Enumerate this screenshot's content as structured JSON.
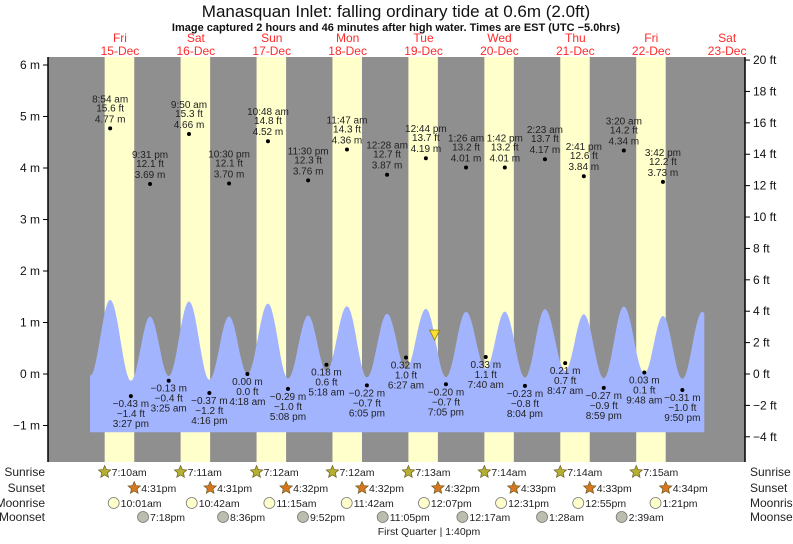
{
  "title": "Manasquan Inlet: falling  ordinary tide at 0.6m (2.0ft)",
  "subtitle": "Image captured 2 hours and 46 minutes after high water. Times are EST (UTC −5.0hrs)",
  "colors": {
    "night": "#8f8f8f",
    "day": "#ffffcc",
    "tide": "#a3b4ff",
    "day_label": "#ff2a2a",
    "sunrise": "#b5b030",
    "sunset": "#d8761f",
    "moonrise": "#ffffcc",
    "moonset": "#bdbdad",
    "marker": "#ffe030"
  },
  "days": [
    {
      "dow": "Fri",
      "date": "15-Dec"
    },
    {
      "dow": "Sat",
      "date": "16-Dec"
    },
    {
      "dow": "Sun",
      "date": "17-Dec"
    },
    {
      "dow": "Mon",
      "date": "18-Dec"
    },
    {
      "dow": "Tue",
      "date": "19-Dec"
    },
    {
      "dow": "Wed",
      "date": "20-Dec"
    },
    {
      "dow": "Thu",
      "date": "21-Dec"
    },
    {
      "dow": "Fri",
      "date": "22-Dec"
    },
    {
      "dow": "Sat",
      "date": "23-Dec"
    }
  ],
  "row_labels": {
    "sunrise": "Sunrise",
    "sunset": "Sunset",
    "moonrise": "Moonrise",
    "moonset": "Moonset"
  },
  "moon_phase": "First Quarter | 1:40pm",
  "chart_data": {
    "type": "area",
    "yaxis_left": {
      "unit": "m",
      "ticks": [
        "6 m",
        "5 m",
        "4 m",
        "3 m",
        "2 m",
        "1 m",
        "0 m",
        "−1 m"
      ],
      "range": [
        -1.7,
        6.2
      ]
    },
    "yaxis_right": {
      "unit": "ft",
      "ticks": [
        "20 ft",
        "18 ft",
        "16 ft",
        "14 ft",
        "12 ft",
        "10 ft",
        "8 ft",
        "6 ft",
        "4 ft",
        "2 ft",
        "0 ft",
        "−2 ft",
        "−4 ft"
      ]
    },
    "current": {
      "day": 19,
      "time": "3:30pm",
      "height_m": 0.6,
      "height_ft": 2.0,
      "state": "falling"
    },
    "tides": [
      {
        "day": 15,
        "type": "high",
        "time": "8:54 am",
        "ft": "15.6 ft",
        "m": "4.77 m",
        "value": 4.77
      },
      {
        "day": 15,
        "type": "low",
        "time": "3:27 pm",
        "ft": "−1.4 ft",
        "m": "−0.43 m",
        "value": -0.43
      },
      {
        "day": 15,
        "type": "high",
        "time": "9:31 pm",
        "ft": "12.1 ft",
        "m": "3.69 m",
        "value": 3.69
      },
      {
        "day": 16,
        "type": "low",
        "time": "3:25 am",
        "ft": "−0.4 ft",
        "m": "−0.13 m",
        "value": -0.13
      },
      {
        "day": 16,
        "type": "high",
        "time": "9:50 am",
        "ft": "15.3 ft",
        "m": "4.66 m",
        "value": 4.66
      },
      {
        "day": 16,
        "type": "low",
        "time": "4:16 pm",
        "ft": "−1.2 ft",
        "m": "−0.37 m",
        "value": -0.37
      },
      {
        "day": 16,
        "type": "high",
        "time": "10:30 pm",
        "ft": "12.1 ft",
        "m": "3.70 m",
        "value": 3.7
      },
      {
        "day": 17,
        "type": "low",
        "time": "4:18 am",
        "ft": "0.0 ft",
        "m": "0.00 m",
        "value": 0.0
      },
      {
        "day": 17,
        "type": "high",
        "time": "10:48 am",
        "ft": "14.8 ft",
        "m": "4.52 m",
        "value": 4.52
      },
      {
        "day": 17,
        "type": "low",
        "time": "5:08 pm",
        "ft": "−1.0 ft",
        "m": "−0.29 m",
        "value": -0.29
      },
      {
        "day": 17,
        "type": "high",
        "time": "11:30 pm",
        "ft": "12.3 ft",
        "m": "3.76 m",
        "value": 3.76
      },
      {
        "day": 18,
        "type": "low",
        "time": "5:18 am",
        "ft": "0.6 ft",
        "m": "0.18 m",
        "value": 0.18
      },
      {
        "day": 18,
        "type": "high",
        "time": "11:47 am",
        "ft": "14.3 ft",
        "m": "4.36 m",
        "value": 4.36
      },
      {
        "day": 18,
        "type": "low",
        "time": "6:05 pm",
        "ft": "−0.7 ft",
        "m": "−0.22 m",
        "value": -0.22
      },
      {
        "day": 19,
        "type": "high",
        "time": "12:28 am",
        "ft": "12.7 ft",
        "m": "3.87 m",
        "value": 3.87
      },
      {
        "day": 19,
        "type": "low",
        "time": "6:27 am",
        "ft": "1.0 ft",
        "m": "0.32 m",
        "value": 0.32
      },
      {
        "day": 19,
        "type": "high",
        "time": "12:44 pm",
        "ft": "13.7 ft",
        "m": "4.19 m",
        "value": 4.19
      },
      {
        "day": 19,
        "type": "low",
        "time": "7:05 pm",
        "ft": "−0.7 ft",
        "m": "−0.20 m",
        "value": -0.2
      },
      {
        "day": 20,
        "type": "high",
        "time": "1:26 am",
        "ft": "13.2 ft",
        "m": "4.01 m",
        "value": 4.01
      },
      {
        "day": 20,
        "type": "low",
        "time": "7:40 am",
        "ft": "1.1 ft",
        "m": "0.33 m",
        "value": 0.33
      },
      {
        "day": 20,
        "type": "high",
        "time": "1:42 pm",
        "ft": "13.2 ft",
        "m": "4.01 m",
        "value": 4.01
      },
      {
        "day": 20,
        "type": "low",
        "time": "8:04 pm",
        "ft": "−0.8 ft",
        "m": "−0.23 m",
        "value": -0.23
      },
      {
        "day": 21,
        "type": "high",
        "time": "2:23 am",
        "ft": "13.7 ft",
        "m": "4.17 m",
        "value": 4.17
      },
      {
        "day": 21,
        "type": "low",
        "time": "8:47 am",
        "ft": "0.7 ft",
        "m": "0.21 m",
        "value": 0.21
      },
      {
        "day": 21,
        "type": "high",
        "time": "2:41 pm",
        "ft": "12.6 ft",
        "m": "3.84 m",
        "value": 3.84
      },
      {
        "day": 21,
        "type": "low",
        "time": "8:59 pm",
        "ft": "−0.9 ft",
        "m": "−0.27 m",
        "value": -0.27
      },
      {
        "day": 22,
        "type": "high",
        "time": "3:20 am",
        "ft": "14.2 ft",
        "m": "4.34 m",
        "value": 4.34
      },
      {
        "day": 22,
        "type": "low",
        "time": "9:48 am",
        "ft": "0.1 ft",
        "m": "0.03 m",
        "value": 0.03
      },
      {
        "day": 22,
        "type": "high",
        "time": "3:42 pm",
        "ft": "12.2 ft",
        "m": "3.73 m",
        "value": 3.73
      },
      {
        "day": 22,
        "type": "low",
        "time": "9:50 pm",
        "ft": "−1.0 ft",
        "m": "−0.31 m",
        "value": -0.31
      }
    ],
    "sunrise": [
      {
        "day": 15,
        "time": "7:10am"
      },
      {
        "day": 16,
        "time": "7:11am"
      },
      {
        "day": 17,
        "time": "7:12am"
      },
      {
        "day": 18,
        "time": "7:12am"
      },
      {
        "day": 19,
        "time": "7:13am"
      },
      {
        "day": 20,
        "time": "7:14am"
      },
      {
        "day": 21,
        "time": "7:14am"
      },
      {
        "day": 22,
        "time": "7:15am"
      }
    ],
    "sunset": [
      {
        "day": 15,
        "time": "4:31pm"
      },
      {
        "day": 16,
        "time": "4:31pm"
      },
      {
        "day": 17,
        "time": "4:32pm"
      },
      {
        "day": 18,
        "time": "4:32pm"
      },
      {
        "day": 19,
        "time": "4:32pm"
      },
      {
        "day": 20,
        "time": "4:33pm"
      },
      {
        "day": 21,
        "time": "4:33pm"
      },
      {
        "day": 22,
        "time": "4:34pm"
      }
    ],
    "moonrise": [
      {
        "day": 15,
        "time": "10:01am"
      },
      {
        "day": 16,
        "time": "10:42am"
      },
      {
        "day": 17,
        "time": "11:15am"
      },
      {
        "day": 18,
        "time": "11:42am"
      },
      {
        "day": 19,
        "time": "12:07pm"
      },
      {
        "day": 20,
        "time": "12:31pm"
      },
      {
        "day": 21,
        "time": "12:55pm"
      },
      {
        "day": 22,
        "time": "1:21pm"
      }
    ],
    "moonset": [
      {
        "day": 15,
        "time": "7:18pm"
      },
      {
        "day": 16,
        "time": "8:36pm"
      },
      {
        "day": 17,
        "time": "9:52pm"
      },
      {
        "day": 18,
        "time": "11:05pm"
      },
      {
        "day": 20,
        "time": "12:17am"
      },
      {
        "day": 21,
        "time": "1:28am"
      },
      {
        "day": 22,
        "time": "2:39am"
      }
    ],
    "moon_phase_event": {
      "day": 19,
      "time": "1:40pm"
    }
  }
}
